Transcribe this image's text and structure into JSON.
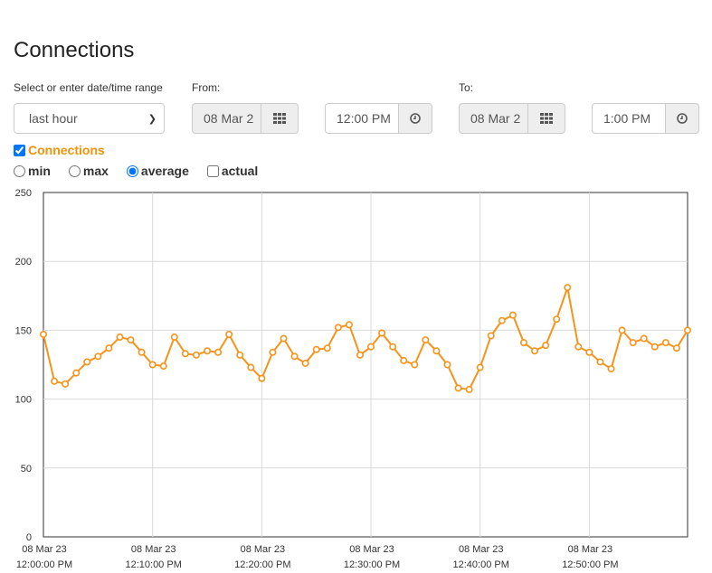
{
  "page": {
    "title": "Connections"
  },
  "range": {
    "label": "Select or enter date/time range",
    "selected": "last hour"
  },
  "from": {
    "label": "From:",
    "date": "08 Mar 2",
    "time": "12:00 PM"
  },
  "to": {
    "label": "To:",
    "date": "08 Mar 2",
    "time": "1:00 PM"
  },
  "series_toggle": {
    "label": "Connections",
    "checked": true,
    "color": "#f0930a"
  },
  "modes": {
    "min": "min",
    "max": "max",
    "average": "average",
    "actual": "actual",
    "selected": "average"
  },
  "icons": {
    "calendar": "calendar-grid-icon",
    "clock": "clock-icon"
  },
  "colors": {
    "line": "#f7931a",
    "grid": "#d9d9d9",
    "axis": "#333333"
  },
  "chart_data": {
    "type": "line",
    "title": "",
    "xlabel": "",
    "ylabel": "",
    "ylim": [
      0,
      250
    ],
    "yticks": [
      "0",
      "50",
      "100",
      "150",
      "200",
      "250"
    ],
    "xticks": [
      [
        "08 Mar 23",
        "12:00:00 PM"
      ],
      [
        "08 Mar 23",
        "12:10:00 PM"
      ],
      [
        "08 Mar 23",
        "12:20:00 PM"
      ],
      [
        "08 Mar 23",
        "12:30:00 PM"
      ],
      [
        "08 Mar 23",
        "12:40:00 PM"
      ],
      [
        "08 Mar 23",
        "12:50:00 PM"
      ]
    ],
    "x_unit": "minutes after 12:00:00 PM",
    "xlim": [
      0,
      59
    ],
    "grid": true,
    "series": [
      {
        "name": "Connections",
        "values": [
          147,
          113,
          111,
          119,
          127,
          131,
          137,
          145,
          143,
          134,
          125,
          124,
          145,
          133,
          132,
          135,
          134,
          147,
          132,
          123,
          115,
          134,
          144,
          131,
          126,
          136,
          137,
          152,
          154,
          132,
          138,
          148,
          138,
          128,
          125,
          143,
          135,
          125,
          108,
          107,
          123,
          146,
          157,
          161,
          141,
          135,
          139,
          158,
          181,
          138,
          134,
          127,
          122,
          150,
          141,
          144,
          138,
          141,
          137,
          150
        ],
        "x": [
          0,
          1,
          2,
          3,
          4,
          5,
          6,
          7,
          8,
          9,
          10,
          11,
          12,
          13,
          14,
          15,
          16,
          17,
          18,
          19,
          20,
          21,
          22,
          23,
          24,
          25,
          26,
          27,
          28,
          29,
          30,
          31,
          32,
          33,
          34,
          35,
          36,
          37,
          38,
          39,
          40,
          41,
          42,
          43,
          44,
          45,
          46,
          47,
          48,
          49,
          50,
          51,
          52,
          53,
          54,
          55,
          56,
          57,
          58,
          59
        ]
      }
    ]
  }
}
